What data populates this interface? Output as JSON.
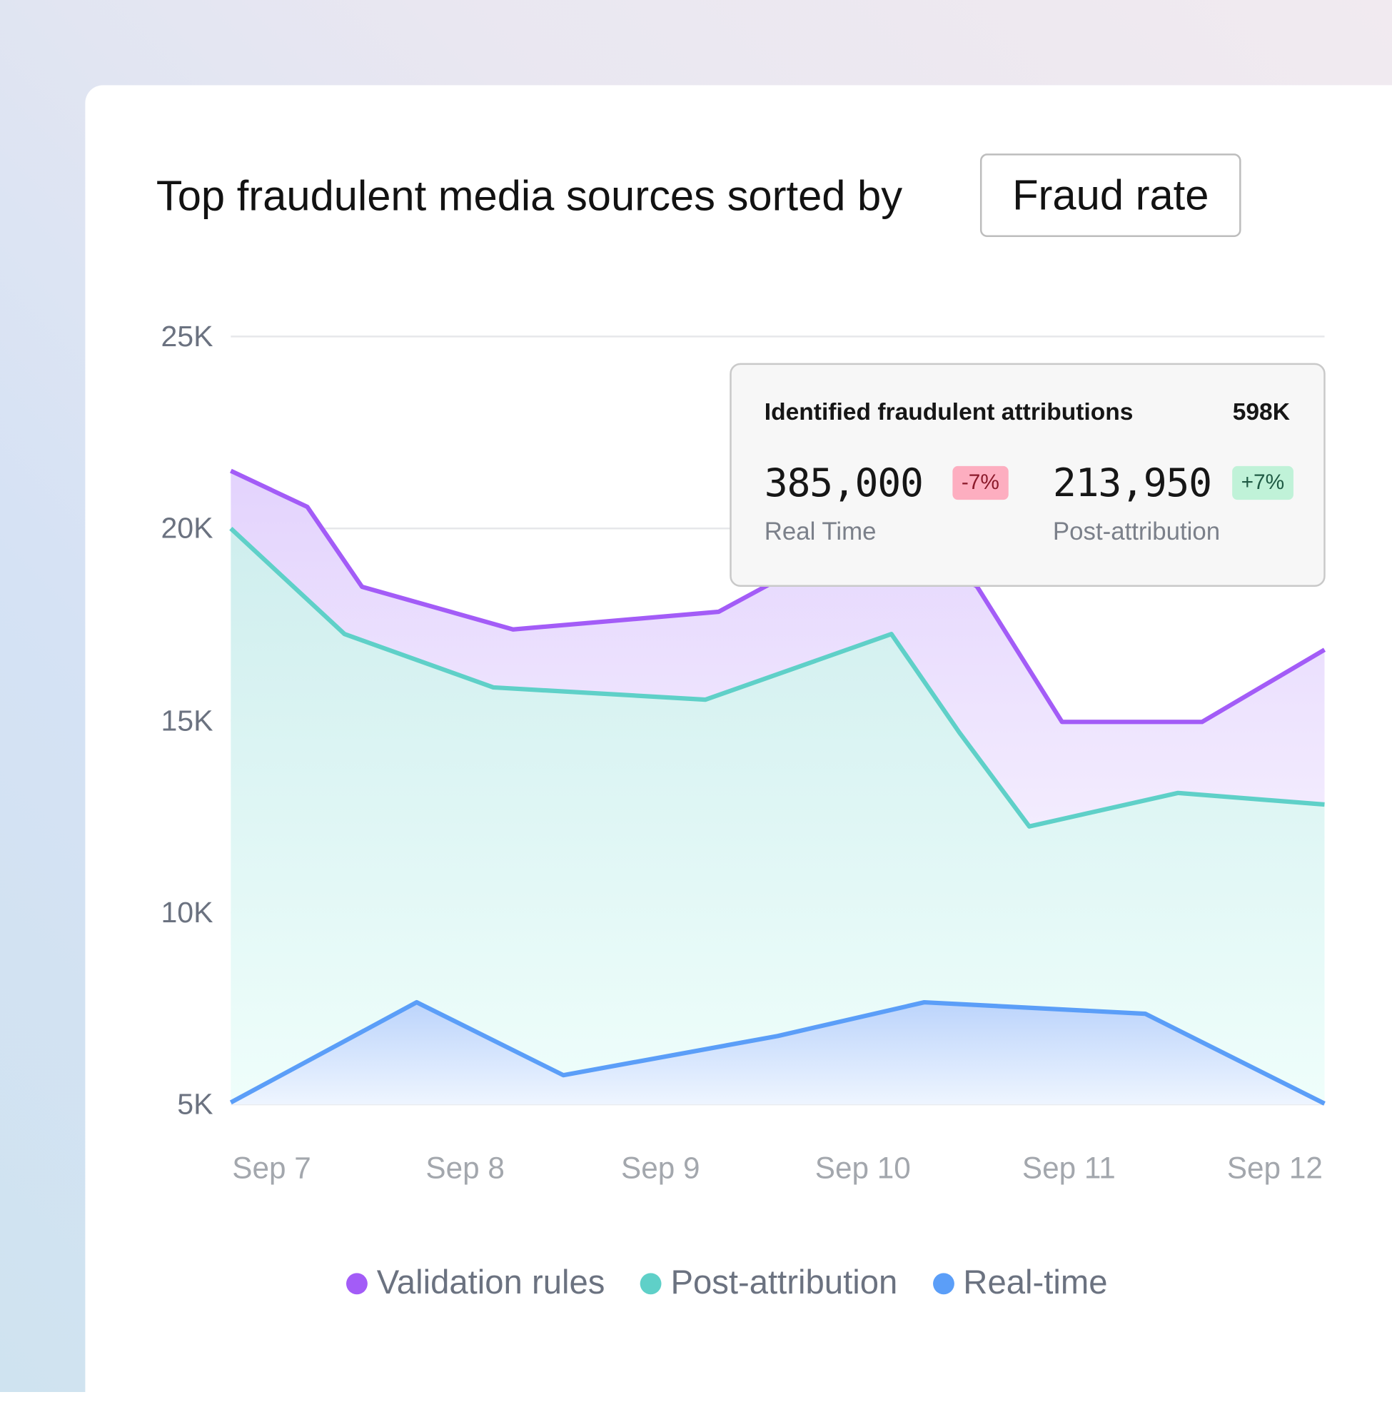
{
  "header": {
    "title": "Top fraudulent media sources sorted by",
    "sort_button": "Fraud rate"
  },
  "tooltip": {
    "heading": "Identified fraudulent attributions",
    "total": "598K",
    "real_time": {
      "value": "385,000",
      "change": "-7%",
      "label": "Real Time"
    },
    "post_attribution": {
      "value": "213,950",
      "change": "+7%",
      "label": "Post-attribution"
    },
    "colors": {
      "negative_bg": "#fdaec0",
      "negative_text": "#8b1a2b",
      "positive_bg": "#c0f2d8",
      "positive_text": "#1f5a44"
    }
  },
  "chart_data": {
    "type": "area",
    "y_ticks": [
      "25K",
      "20K",
      "15K",
      "10K",
      "5K"
    ],
    "ylim": [
      5000,
      25000
    ],
    "x_ticks": [
      "Sep 7",
      "Sep 8",
      "Sep 9",
      "Sep 10",
      "Sep 11",
      "Sep 12"
    ],
    "xlim": [
      7,
      12
    ],
    "grid": true,
    "legend_position": "bottom",
    "series": [
      {
        "name": "Validation rules",
        "color": "#a35cf7",
        "x": [
          7.0,
          7.35,
          7.6,
          8.29,
          9.23,
          9.48,
          9.95,
          10.41,
          10.8,
          11.44,
          12.0
        ],
        "y": [
          21500,
          20560,
          18480,
          17370,
          17830,
          18600,
          19800,
          18500,
          14960,
          14960,
          16840
        ]
      },
      {
        "name": "Post-attribution",
        "color": "#5fd0c8",
        "x": [
          7.0,
          7.52,
          8.2,
          9.17,
          10.02,
          10.33,
          10.65,
          11.33,
          12.0
        ],
        "y": [
          20000,
          17250,
          15860,
          15540,
          17250,
          14690,
          12240,
          13110,
          12810
        ]
      },
      {
        "name": "Real-time",
        "color": "#5b9ef8",
        "x": [
          7.0,
          7.85,
          8.52,
          9.5,
          10.17,
          11.18,
          12.0
        ],
        "y": [
          5050,
          7660,
          5760,
          6780,
          7660,
          7360,
          5020
        ]
      }
    ]
  }
}
